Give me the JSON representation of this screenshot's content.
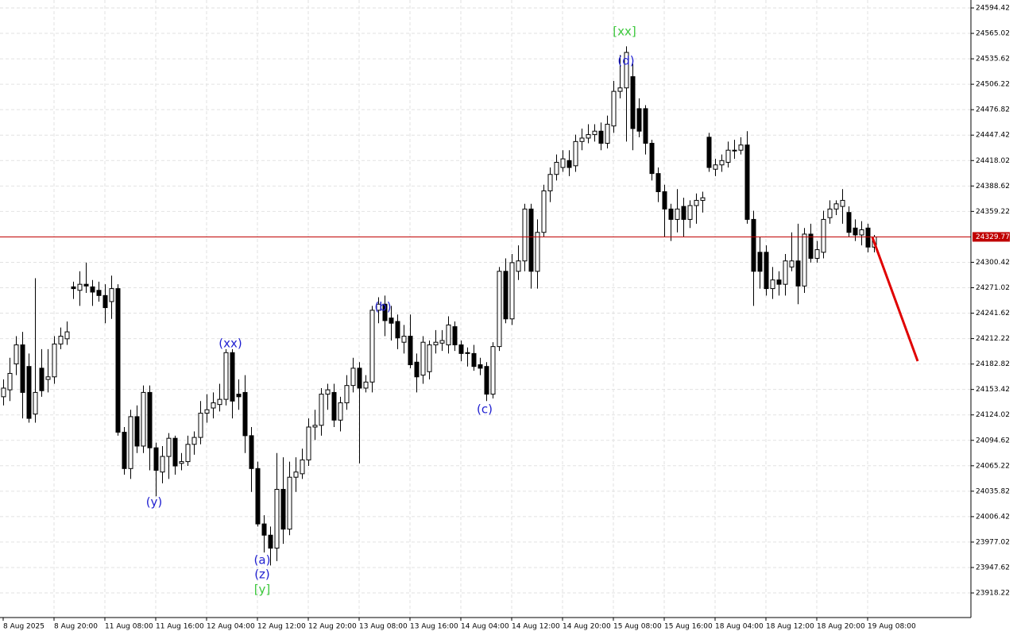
{
  "chart_data": {
    "type": "candlestick",
    "categories": [
      "8 Aug 2025",
      null,
      null,
      null,
      null,
      null,
      null,
      null,
      "8 Aug 20:00",
      null,
      null,
      null,
      null,
      null,
      null,
      null,
      "11 Aug 08:00",
      null,
      null,
      null,
      null,
      null,
      null,
      null,
      "11 Aug 16:00",
      null,
      null,
      null,
      null,
      null,
      null,
      null,
      "12 Aug 04:00",
      null,
      null,
      null,
      null,
      null,
      null,
      null,
      "12 Aug 12:00",
      null,
      null,
      null,
      null,
      null,
      null,
      null,
      "12 Aug 20:00",
      null,
      null,
      null,
      null,
      null,
      null,
      null,
      "13 Aug 08:00",
      null,
      null,
      null,
      null,
      null,
      null,
      null,
      "13 Aug 16:00",
      null,
      null,
      null,
      null,
      null,
      null,
      null,
      "14 Aug 04:00",
      null,
      null,
      null,
      null,
      null,
      null,
      null,
      "14 Aug 12:00",
      null,
      null,
      null,
      null,
      null,
      null,
      null,
      "14 Aug 20:00",
      null,
      null,
      null,
      null,
      null,
      null,
      null,
      "15 Aug 08:00",
      null,
      null,
      null,
      null,
      null,
      null,
      null,
      "15 Aug 16:00",
      null,
      null,
      null,
      null,
      null,
      null,
      null,
      "18 Aug 04:00",
      null,
      null,
      null,
      null,
      null,
      null,
      null,
      "18 Aug 12:00",
      null,
      null,
      null,
      null,
      null,
      null,
      null,
      "18 Aug 20:00",
      null,
      null,
      null,
      null,
      null,
      null,
      null,
      "19 Aug 08:00",
      null
    ],
    "open": [
      24145,
      24153,
      24183,
      24205,
      24180,
      24125,
      24178,
      24165,
      24168,
      24206,
      24212,
      24272,
      24268,
      24275,
      24272,
      24268,
      24262,
      24255,
      24270,
      24104,
      24062,
      24122,
      24088,
      24150,
      24086,
      24058,
      24076,
      24097,
      24068,
      24070,
      24090,
      24098,
      24126,
      24132,
      24136,
      24142,
      24196,
      24148,
      24150,
      24100,
      24062,
      23998,
      23985,
      23970,
      24038,
      23992,
      24052,
      24056,
      24072,
      24110,
      24112,
      24148,
      24150,
      24118,
      24138,
      24158,
      24178,
      24155,
      24162,
      24245,
      24252,
      24236,
      24232,
      24208,
      24215,
      24185,
      24170,
      24174,
      24205,
      24207,
      24205,
      24226,
      24205,
      24196,
      24195,
      24182,
      24180,
      24148,
      24203,
      24290,
      24235,
      24290,
      24302,
      24362,
      24290,
      24335,
      24383,
      24402,
      24410,
      24418,
      24412,
      24440,
      24444,
      24448,
      24452,
      24438,
      24458,
      24498,
      24502,
      24515,
      24478,
      24478,
      24438,
      24403,
      24382,
      24362,
      24350,
      24365,
      24350,
      24366,
      24372,
      24445,
      24408,
      24413,
      24416,
      24430,
      24430,
      24436,
      24350,
      24312,
      24312,
      24270,
      24280,
      24275,
      24295,
      24302,
      24273,
      24333,
      24305,
      24312,
      24352,
      24362,
      24365,
      24358,
      24340,
      24332,
      24340,
      24318
    ],
    "high": [
      24165,
      24190,
      24215,
      24220,
      24195,
      24282,
      24200,
      24200,
      24215,
      24225,
      24232,
      24278,
      24290,
      24300,
      24280,
      24278,
      24275,
      24285,
      24275,
      24110,
      24130,
      24135,
      24158,
      24158,
      24092,
      24088,
      24103,
      24100,
      24080,
      24100,
      24105,
      24140,
      24148,
      24150,
      24160,
      24200,
      24200,
      24165,
      24170,
      24110,
      24070,
      24008,
      23995,
      24080,
      24075,
      24070,
      24075,
      24085,
      24120,
      24130,
      24155,
      24160,
      24160,
      24145,
      24170,
      24190,
      24185,
      24170,
      24250,
      24260,
      24262,
      24250,
      24240,
      24228,
      24240,
      24195,
      24215,
      24210,
      24222,
      24222,
      24238,
      24232,
      24210,
      24202,
      24205,
      24190,
      24185,
      24208,
      24295,
      24305,
      24310,
      24320,
      24368,
      24368,
      24350,
      24390,
      24410,
      24425,
      24430,
      24430,
      24448,
      24455,
      24460,
      24460,
      24462,
      24470,
      24510,
      24540,
      24550,
      24530,
      24490,
      24482,
      24442,
      24410,
      24390,
      24368,
      24385,
      24375,
      24372,
      24380,
      24382,
      24450,
      24420,
      24425,
      24440,
      24442,
      24445,
      24452,
      24360,
      24330,
      24320,
      24295,
      24290,
      24310,
      24335,
      24345,
      24340,
      24345,
      24325,
      24360,
      24372,
      24372,
      24385,
      24365,
      24350,
      24348,
      24345,
      24332
    ],
    "low": [
      24135,
      24140,
      24170,
      24120,
      24115,
      24115,
      24145,
      24150,
      24160,
      24200,
      24205,
      24258,
      24250,
      24265,
      24250,
      24255,
      24230,
      24235,
      24100,
      24055,
      24050,
      24080,
      24080,
      24060,
      24030,
      24045,
      24050,
      24055,
      24060,
      24065,
      24078,
      24090,
      24115,
      24120,
      24128,
      24135,
      24120,
      24130,
      24080,
      24035,
      23995,
      23965,
      23950,
      23955,
      23975,
      23985,
      24035,
      24050,
      24065,
      24095,
      24100,
      24130,
      24110,
      24105,
      24130,
      24150,
      24068,
      24150,
      24150,
      24230,
      24215,
      24210,
      24200,
      24195,
      24178,
      24150,
      24160,
      24165,
      24195,
      24198,
      24195,
      24198,
      24186,
      24180,
      24175,
      24170,
      24140,
      24143,
      24198,
      24230,
      24228,
      24280,
      24290,
      24270,
      24270,
      24330,
      24370,
      24395,
      24405,
      24400,
      24405,
      24430,
      24438,
      24440,
      24430,
      24432,
      24450,
      24490,
      24440,
      24430,
      24445,
      24425,
      24395,
      24370,
      24330,
      24325,
      24335,
      24330,
      24340,
      24345,
      24358,
      24405,
      24400,
      24405,
      24410,
      24420,
      24425,
      24345,
      24250,
      24270,
      24262,
      24258,
      24262,
      24262,
      24290,
      24252,
      24265,
      24300,
      24300,
      24305,
      24345,
      24355,
      24345,
      24330,
      24325,
      24320,
      24312,
      24312
    ],
    "close": [
      24155,
      24172,
      24205,
      24150,
      24120,
      24150,
      24152,
      24168,
      24206,
      24215,
      24220,
      24270,
      24275,
      24273,
      24266,
      24262,
      24248,
      24270,
      24104,
      24062,
      24122,
      24088,
      24150,
      24086,
      24060,
      24076,
      24097,
      24065,
      24070,
      24090,
      24098,
      24126,
      24130,
      24138,
      24142,
      24196,
      24140,
      24145,
      24100,
      24062,
      23998,
      23985,
      23970,
      24038,
      23992,
      24052,
      24058,
      24072,
      24110,
      24112,
      24148,
      24153,
      24118,
      24138,
      24158,
      24178,
      24155,
      24162,
      24245,
      24252,
      24233,
      24230,
      24213,
      24215,
      24182,
      24168,
      24208,
      24205,
      24208,
      24210,
      24228,
      24205,
      24195,
      24195,
      24180,
      24178,
      24148,
      24203,
      24290,
      24235,
      24300,
      24302,
      24362,
      24290,
      24335,
      24383,
      24402,
      24416,
      24420,
      24410,
      24440,
      24444,
      24448,
      24452,
      24438,
      24460,
      24498,
      24502,
      24543,
      24455,
      24452,
      24438,
      24403,
      24382,
      24362,
      24350,
      24362,
      24350,
      24366,
      24372,
      24375,
      24410,
      24413,
      24418,
      24430,
      24430,
      24436,
      24350,
      24290,
      24290,
      24270,
      24280,
      24275,
      24302,
      24302,
      24273,
      24333,
      24305,
      24315,
      24350,
      24362,
      24368,
      24372,
      24335,
      24332,
      24338,
      24318,
      24329.77
    ],
    "up_color": "#ffffff",
    "down_color": "#000000",
    "ylim": [
      23889.8,
      24603.6
    ],
    "yticks": [
      24594.42,
      24565.02,
      24535.62,
      24506.22,
      24476.82,
      24447.42,
      24418.02,
      24388.62,
      24359.22,
      24300.42,
      24271.02,
      24241.62,
      24212.22,
      24182.82,
      24153.42,
      24124.02,
      24094.62,
      24065.22,
      24035.82,
      24006.42,
      23977.02,
      23947.62,
      23918.22
    ],
    "grid": true,
    "current_price": 24329.77,
    "current_price_color": "#c00000",
    "annotations": [
      {
        "text": "[xx]",
        "color": "#3cc83c"
      },
      {
        "text": "(d)",
        "color": "#1f1fd0"
      },
      {
        "text": "(b)",
        "color": "#1f1fd0"
      },
      {
        "text": "(xx)",
        "color": "#1f1fd0"
      },
      {
        "text": "(c)",
        "color": "#1f1fd0"
      },
      {
        "text": "(y)",
        "color": "#1f1fd0"
      },
      {
        "text": "(a)",
        "color": "#1f1fd0"
      },
      {
        "text": "(z)",
        "color": "#1f1fd0"
      },
      {
        "text": "[y]",
        "color": "#3cc83c"
      }
    ]
  }
}
